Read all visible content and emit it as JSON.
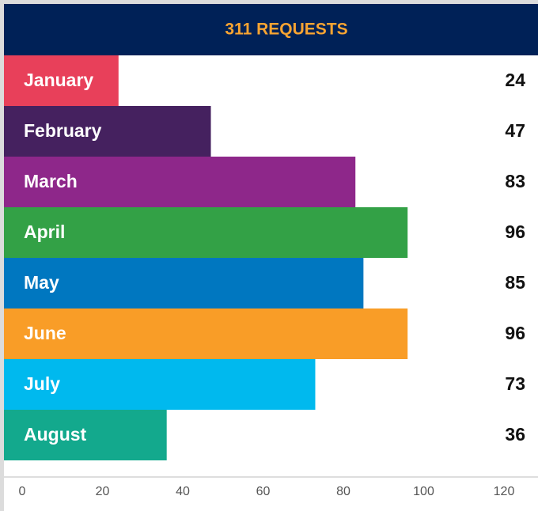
{
  "chart_data": {
    "type": "bar",
    "orientation": "horizontal",
    "title": "311 REQUESTS",
    "categories": [
      "January",
      "February",
      "March",
      "April",
      "May",
      "June",
      "July",
      "August"
    ],
    "values": [
      24,
      47,
      83,
      96,
      85,
      96,
      73,
      36
    ],
    "colors": [
      "#e8405a",
      "#45215f",
      "#8e278a",
      "#33a146",
      "#0077c0",
      "#f99d27",
      "#00b9ee",
      "#13a98d"
    ],
    "xlim": [
      0,
      120
    ],
    "xticks": [
      0,
      20,
      40,
      60,
      80,
      100,
      120
    ]
  }
}
